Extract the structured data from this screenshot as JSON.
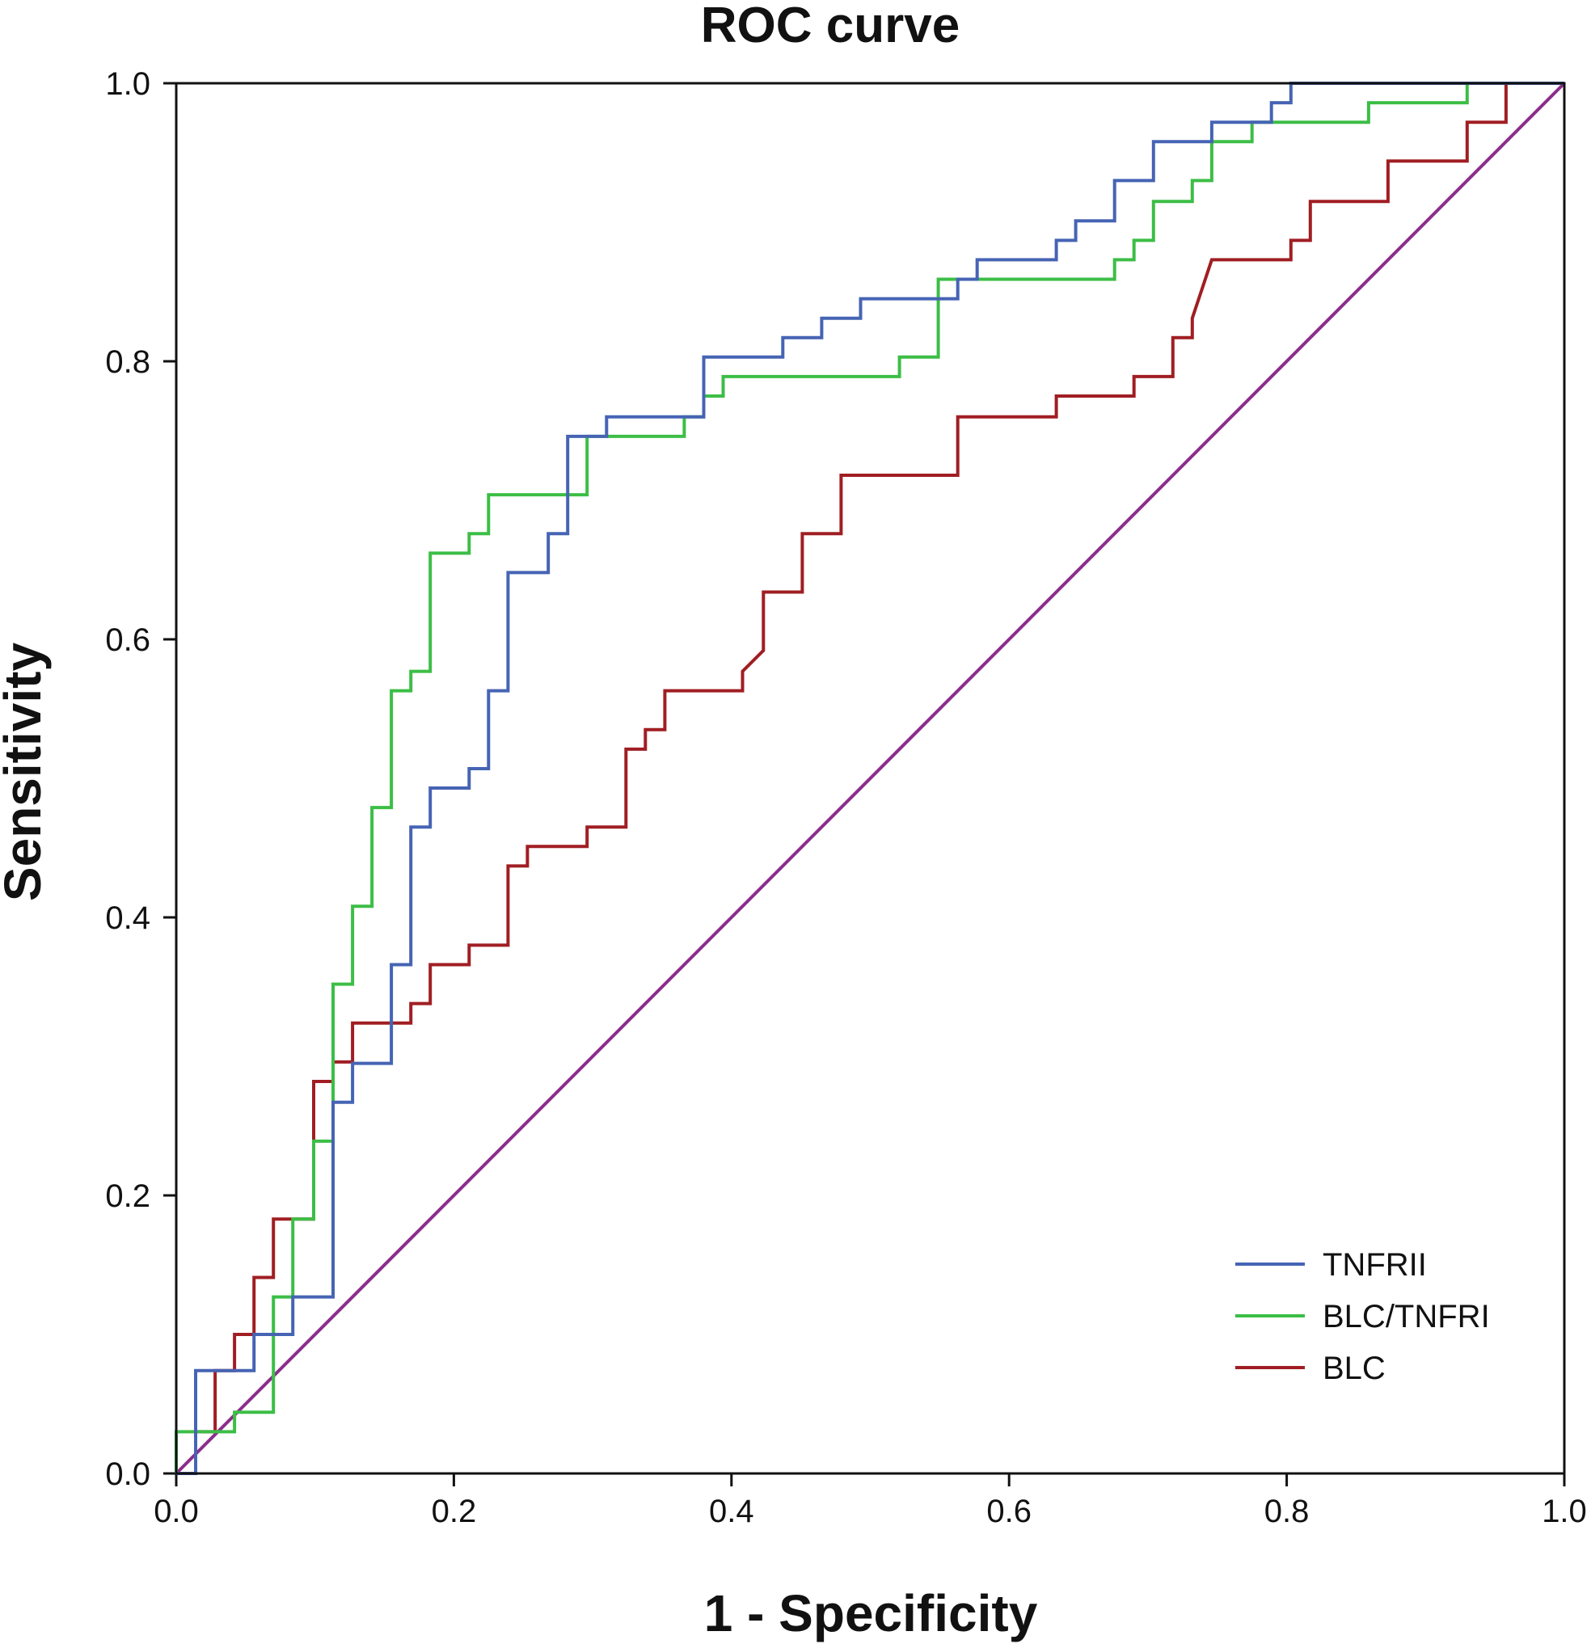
{
  "chart_data": {
    "type": "line",
    "title": "ROC curve",
    "xlabel": "1 - Specificity",
    "ylabel": "Sensitivity",
    "xlim": [
      0.0,
      1.0
    ],
    "ylim": [
      0.0,
      1.0
    ],
    "xticks": [
      "0.0",
      "0.2",
      "0.4",
      "0.6",
      "0.8",
      "1.0"
    ],
    "yticks": [
      "0.0",
      "0.2",
      "0.4",
      "0.6",
      "0.8",
      "1.0"
    ],
    "xtick_values": [
      0.0,
      0.2,
      0.4,
      0.6,
      0.8,
      1.0
    ],
    "ytick_values": [
      0.0,
      0.2,
      0.4,
      0.6,
      0.8,
      1.0
    ],
    "grid": false,
    "legend_position": "bottom-right",
    "series": [
      {
        "name": "TNFRII",
        "color": "#4664b4",
        "points": [
          [
            0.0,
            0.0
          ],
          [
            0.014,
            0.0
          ],
          [
            0.014,
            0.074
          ],
          [
            0.056,
            0.074
          ],
          [
            0.056,
            0.1
          ],
          [
            0.084,
            0.1
          ],
          [
            0.084,
            0.127
          ],
          [
            0.113,
            0.127
          ],
          [
            0.113,
            0.267
          ],
          [
            0.127,
            0.267
          ],
          [
            0.127,
            0.295
          ],
          [
            0.155,
            0.295
          ],
          [
            0.155,
            0.366
          ],
          [
            0.169,
            0.366
          ],
          [
            0.169,
            0.465
          ],
          [
            0.183,
            0.465
          ],
          [
            0.183,
            0.493
          ],
          [
            0.211,
            0.493
          ],
          [
            0.211,
            0.507
          ],
          [
            0.225,
            0.507
          ],
          [
            0.225,
            0.563
          ],
          [
            0.239,
            0.563
          ],
          [
            0.239,
            0.648
          ],
          [
            0.268,
            0.648
          ],
          [
            0.268,
            0.676
          ],
          [
            0.282,
            0.676
          ],
          [
            0.282,
            0.746
          ],
          [
            0.31,
            0.746
          ],
          [
            0.31,
            0.76
          ],
          [
            0.38,
            0.76
          ],
          [
            0.38,
            0.803
          ],
          [
            0.437,
            0.803
          ],
          [
            0.437,
            0.817
          ],
          [
            0.465,
            0.817
          ],
          [
            0.465,
            0.831
          ],
          [
            0.493,
            0.831
          ],
          [
            0.493,
            0.845
          ],
          [
            0.563,
            0.845
          ],
          [
            0.563,
            0.859
          ],
          [
            0.577,
            0.859
          ],
          [
            0.577,
            0.873
          ],
          [
            0.634,
            0.873
          ],
          [
            0.634,
            0.887
          ],
          [
            0.648,
            0.887
          ],
          [
            0.648,
            0.901
          ],
          [
            0.676,
            0.901
          ],
          [
            0.676,
            0.93
          ],
          [
            0.704,
            0.93
          ],
          [
            0.704,
            0.958
          ],
          [
            0.746,
            0.958
          ],
          [
            0.746,
            0.972
          ],
          [
            0.789,
            0.972
          ],
          [
            0.789,
            0.986
          ],
          [
            0.803,
            0.986
          ],
          [
            0.803,
            1.0
          ],
          [
            1.0,
            1.0
          ]
        ]
      },
      {
        "name": "BLC/TNFRI",
        "color": "#3cbe46",
        "points": [
          [
            0.0,
            0.0
          ],
          [
            0.0,
            0.03
          ],
          [
            0.042,
            0.03
          ],
          [
            0.042,
            0.044
          ],
          [
            0.07,
            0.044
          ],
          [
            0.07,
            0.127
          ],
          [
            0.084,
            0.127
          ],
          [
            0.084,
            0.183
          ],
          [
            0.099,
            0.183
          ],
          [
            0.099,
            0.239
          ],
          [
            0.113,
            0.239
          ],
          [
            0.113,
            0.352
          ],
          [
            0.127,
            0.352
          ],
          [
            0.127,
            0.408
          ],
          [
            0.141,
            0.408
          ],
          [
            0.141,
            0.479
          ],
          [
            0.155,
            0.479
          ],
          [
            0.155,
            0.563
          ],
          [
            0.169,
            0.563
          ],
          [
            0.169,
            0.577
          ],
          [
            0.183,
            0.577
          ],
          [
            0.183,
            0.662
          ],
          [
            0.211,
            0.662
          ],
          [
            0.211,
            0.676
          ],
          [
            0.225,
            0.676
          ],
          [
            0.225,
            0.704
          ],
          [
            0.296,
            0.704
          ],
          [
            0.296,
            0.746
          ],
          [
            0.366,
            0.746
          ],
          [
            0.366,
            0.76
          ],
          [
            0.38,
            0.76
          ],
          [
            0.38,
            0.775
          ],
          [
            0.394,
            0.775
          ],
          [
            0.394,
            0.789
          ],
          [
            0.521,
            0.789
          ],
          [
            0.521,
            0.803
          ],
          [
            0.549,
            0.803
          ],
          [
            0.549,
            0.859
          ],
          [
            0.676,
            0.859
          ],
          [
            0.676,
            0.873
          ],
          [
            0.69,
            0.873
          ],
          [
            0.69,
            0.887
          ],
          [
            0.704,
            0.887
          ],
          [
            0.704,
            0.915
          ],
          [
            0.732,
            0.915
          ],
          [
            0.732,
            0.93
          ],
          [
            0.746,
            0.93
          ],
          [
            0.746,
            0.958
          ],
          [
            0.775,
            0.958
          ],
          [
            0.775,
            0.972
          ],
          [
            0.859,
            0.972
          ],
          [
            0.859,
            0.986
          ],
          [
            0.93,
            0.986
          ],
          [
            0.93,
            1.0
          ],
          [
            1.0,
            1.0
          ]
        ]
      },
      {
        "name": "BLC",
        "color": "#a01e23",
        "points": [
          [
            0.0,
            0.0
          ],
          [
            0.014,
            0.0
          ],
          [
            0.014,
            0.03
          ],
          [
            0.028,
            0.03
          ],
          [
            0.028,
            0.074
          ],
          [
            0.042,
            0.074
          ],
          [
            0.042,
            0.1
          ],
          [
            0.056,
            0.1
          ],
          [
            0.056,
            0.141
          ],
          [
            0.07,
            0.141
          ],
          [
            0.07,
            0.183
          ],
          [
            0.099,
            0.183
          ],
          [
            0.099,
            0.282
          ],
          [
            0.113,
            0.282
          ],
          [
            0.113,
            0.296
          ],
          [
            0.127,
            0.296
          ],
          [
            0.127,
            0.324
          ],
          [
            0.169,
            0.324
          ],
          [
            0.169,
            0.338
          ],
          [
            0.183,
            0.338
          ],
          [
            0.183,
            0.366
          ],
          [
            0.211,
            0.366
          ],
          [
            0.211,
            0.38
          ],
          [
            0.239,
            0.38
          ],
          [
            0.239,
            0.437
          ],
          [
            0.253,
            0.437
          ],
          [
            0.253,
            0.451
          ],
          [
            0.296,
            0.451
          ],
          [
            0.296,
            0.465
          ],
          [
            0.324,
            0.465
          ],
          [
            0.324,
            0.521
          ],
          [
            0.338,
            0.521
          ],
          [
            0.338,
            0.535
          ],
          [
            0.352,
            0.535
          ],
          [
            0.352,
            0.563
          ],
          [
            0.408,
            0.563
          ],
          [
            0.408,
            0.577
          ],
          [
            0.423,
            0.592
          ],
          [
            0.423,
            0.634
          ],
          [
            0.451,
            0.634
          ],
          [
            0.451,
            0.676
          ],
          [
            0.479,
            0.676
          ],
          [
            0.479,
            0.718
          ],
          [
            0.563,
            0.718
          ],
          [
            0.563,
            0.76
          ],
          [
            0.634,
            0.76
          ],
          [
            0.634,
            0.775
          ],
          [
            0.69,
            0.775
          ],
          [
            0.69,
            0.789
          ],
          [
            0.718,
            0.789
          ],
          [
            0.718,
            0.817
          ],
          [
            0.732,
            0.817
          ],
          [
            0.732,
            0.831
          ],
          [
            0.746,
            0.873
          ],
          [
            0.803,
            0.873
          ],
          [
            0.803,
            0.887
          ],
          [
            0.817,
            0.887
          ],
          [
            0.817,
            0.915
          ],
          [
            0.873,
            0.915
          ],
          [
            0.873,
            0.944
          ],
          [
            0.93,
            0.944
          ],
          [
            0.93,
            0.972
          ],
          [
            0.958,
            0.972
          ],
          [
            0.958,
            1.0
          ],
          [
            1.0,
            1.0
          ]
        ]
      },
      {
        "name": "",
        "role": "reference-diagonal",
        "color": "#8c2d8c",
        "points": [
          [
            0.0,
            0.0
          ],
          [
            1.0,
            1.0
          ]
        ]
      }
    ]
  }
}
